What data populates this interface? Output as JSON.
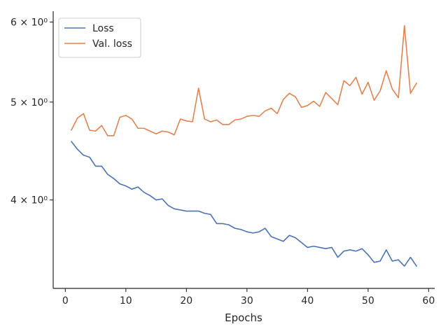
{
  "chart_data": {
    "type": "line",
    "xlabel": "Epochs",
    "ylabel": "",
    "yscale": "log",
    "xlim": [
      -2,
      61
    ],
    "ylim": [
      3.27,
      6.15
    ],
    "grid": false,
    "legend_position": "top-left",
    "x_ticks": [
      0,
      10,
      20,
      30,
      40,
      50,
      60
    ],
    "x_tick_labels": [
      "0",
      "10",
      "20",
      "30",
      "40",
      "50",
      "60"
    ],
    "y_ticks": [
      4,
      5,
      6
    ],
    "y_tick_labels": [
      "4 × 10⁰",
      "5 × 10⁰",
      "6 × 10⁰"
    ],
    "x": [
      1,
      2,
      3,
      4,
      5,
      6,
      7,
      8,
      9,
      10,
      11,
      12,
      13,
      14,
      15,
      16,
      17,
      18,
      19,
      20,
      21,
      22,
      23,
      24,
      25,
      26,
      27,
      28,
      29,
      30,
      31,
      32,
      33,
      34,
      35,
      36,
      37,
      38,
      39,
      40,
      41,
      42,
      43,
      44,
      45,
      46,
      47,
      48,
      49,
      50,
      51,
      52,
      53,
      54,
      55,
      56,
      57,
      58
    ],
    "series": [
      {
        "name": "Loss",
        "color": "#4c72b0",
        "values": [
          4.57,
          4.49,
          4.43,
          4.41,
          4.32,
          4.32,
          4.24,
          4.2,
          4.15,
          4.13,
          4.1,
          4.12,
          4.07,
          4.04,
          4.0,
          4.01,
          3.95,
          3.92,
          3.91,
          3.9,
          3.9,
          3.9,
          3.88,
          3.87,
          3.79,
          3.79,
          3.78,
          3.75,
          3.74,
          3.72,
          3.71,
          3.72,
          3.75,
          3.68,
          3.66,
          3.64,
          3.69,
          3.67,
          3.63,
          3.59,
          3.6,
          3.59,
          3.58,
          3.59,
          3.51,
          3.56,
          3.57,
          3.56,
          3.58,
          3.53,
          3.47,
          3.48,
          3.57,
          3.48,
          3.49,
          3.44,
          3.51,
          3.44
        ]
      },
      {
        "name": "Val. loss",
        "color": "#dd8452",
        "values": [
          4.69,
          4.82,
          4.87,
          4.69,
          4.68,
          4.74,
          4.63,
          4.63,
          4.83,
          4.85,
          4.81,
          4.71,
          4.71,
          4.68,
          4.65,
          4.68,
          4.67,
          4.64,
          4.81,
          4.79,
          4.78,
          5.16,
          4.81,
          4.78,
          4.8,
          4.75,
          4.75,
          4.8,
          4.81,
          4.84,
          4.85,
          4.84,
          4.9,
          4.93,
          4.87,
          5.03,
          5.1,
          5.06,
          4.94,
          4.96,
          5.01,
          4.95,
          5.11,
          5.04,
          4.97,
          5.25,
          5.19,
          5.29,
          5.09,
          5.23,
          5.02,
          5.13,
          5.37,
          5.15,
          5.05,
          5.95,
          5.1,
          5.22
        ]
      }
    ]
  }
}
